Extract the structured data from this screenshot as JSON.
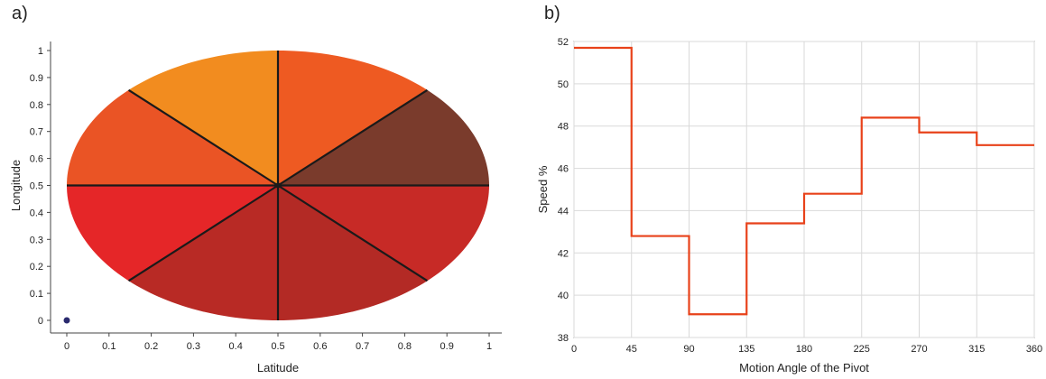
{
  "panels": {
    "a": {
      "label": "a)"
    },
    "b": {
      "label": "b)"
    }
  },
  "chart_data": [
    {
      "type": "scatter",
      "subtype": "segmented-ellipse",
      "xlabel": "Latitude",
      "ylabel": "Longitude",
      "xlim": [
        0,
        1
      ],
      "ylim": [
        0,
        1
      ],
      "xticks": [
        "0",
        "0.1",
        "0.2",
        "0.3",
        "0.4",
        "0.5",
        "0.6",
        "0.7",
        "0.8",
        "0.9",
        "1"
      ],
      "yticks": [
        "0",
        "0.1",
        "0.2",
        "0.3",
        "0.4",
        "0.5",
        "0.6",
        "0.7",
        "0.8",
        "0.9",
        "1"
      ],
      "ellipse": {
        "cx": 0.5,
        "cy": 0.5,
        "rx": 0.5,
        "ry": 0.5
      },
      "sectors": [
        {
          "from_deg": 0,
          "to_deg": 45,
          "color": "#7a3b2c"
        },
        {
          "from_deg": 45,
          "to_deg": 90,
          "color": "#ee5a22"
        },
        {
          "from_deg": 90,
          "to_deg": 135,
          "color": "#f28c1f"
        },
        {
          "from_deg": 135,
          "to_deg": 180,
          "color": "#ea5425"
        },
        {
          "from_deg": 180,
          "to_deg": 225,
          "color": "#e52628"
        },
        {
          "from_deg": 225,
          "to_deg": 270,
          "color": "#b82a25"
        },
        {
          "from_deg": 270,
          "to_deg": 315,
          "color": "#b32a25"
        },
        {
          "from_deg": 315,
          "to_deg": 360,
          "color": "#c72a26"
        }
      ],
      "points": [
        {
          "x": 0,
          "y": 0,
          "color": "#2a2a6e"
        }
      ]
    },
    {
      "type": "line",
      "xlabel": "Motion Angle of the Pivot",
      "ylabel": "Speed %",
      "xlim": [
        0,
        360
      ],
      "ylim": [
        38,
        52
      ],
      "xticks": [
        "0",
        "45",
        "90",
        "135",
        "180",
        "225",
        "270",
        "315",
        "360"
      ],
      "yticks": [
        "38",
        "40",
        "42",
        "44",
        "46",
        "48",
        "50",
        "52"
      ],
      "grid": true,
      "step": true,
      "color": "#e8421a",
      "series": [
        {
          "x": [
            0,
            45,
            45,
            90,
            90,
            135,
            135,
            180,
            180,
            225,
            225,
            270,
            270,
            315,
            315,
            360
          ],
          "values": [
            51.7,
            51.7,
            42.8,
            42.8,
            39.1,
            39.1,
            43.4,
            43.4,
            44.8,
            44.8,
            48.4,
            48.4,
            47.7,
            47.7,
            47.1,
            47.1
          ]
        }
      ]
    }
  ]
}
